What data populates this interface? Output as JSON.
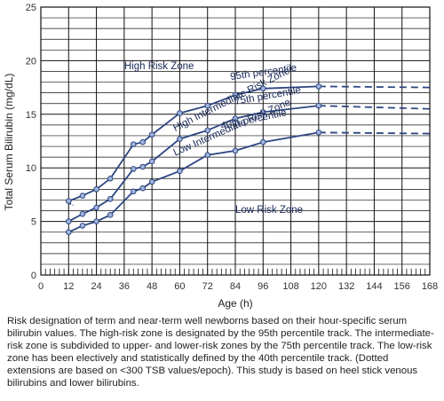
{
  "chart_data": {
    "type": "line",
    "xlabel": "Age (h)",
    "ylabel": "Total Serum Bilirubin (mg/dL)",
    "xlim": [
      0,
      168
    ],
    "ylim": [
      0,
      25
    ],
    "xticks": [
      0,
      12,
      24,
      36,
      48,
      60,
      72,
      84,
      96,
      108,
      120,
      132,
      144,
      156,
      168
    ],
    "yticks": [
      0,
      5,
      10,
      15,
      20,
      25
    ],
    "grid": true,
    "series": [
      {
        "name": "95th percentile",
        "x": [
          12,
          18,
          24,
          30,
          40,
          44,
          48,
          60,
          72,
          84,
          96,
          120
        ],
        "y": [
          6.9,
          7.4,
          8.0,
          9.0,
          12.2,
          12.4,
          13.1,
          15.1,
          15.8,
          16.8,
          17.4,
          17.6
        ],
        "dotted_x": [
          12,
          14
        ],
        "dotted_y": [
          6.7,
          6.5
        ],
        "extension_x": [
          120,
          168
        ],
        "extension_y": [
          17.6,
          17.5
        ]
      },
      {
        "name": "75th percentile",
        "x": [
          12,
          18,
          24,
          30,
          40,
          44,
          48,
          60,
          72,
          84,
          96,
          120
        ],
        "y": [
          5.0,
          5.7,
          6.3,
          7.1,
          9.9,
          10.1,
          10.6,
          12.7,
          13.5,
          14.6,
          15.2,
          15.8
        ],
        "dotted_x": [
          12,
          14
        ],
        "dotted_y": [
          5.0,
          5.0
        ],
        "extension_x": [
          120,
          168
        ],
        "extension_y": [
          15.8,
          15.5
        ]
      },
      {
        "name": "40th percentile",
        "x": [
          12,
          18,
          24,
          30,
          40,
          44,
          48,
          60,
          72,
          84,
          96,
          120
        ],
        "y": [
          4.0,
          4.6,
          5.0,
          5.6,
          7.8,
          8.1,
          8.7,
          9.7,
          11.2,
          11.6,
          12.4,
          13.3
        ],
        "dotted_x": [
          12,
          14
        ],
        "dotted_y": [
          3.8,
          4.0
        ],
        "extension_x": [
          120,
          168
        ],
        "extension_y": [
          13.3,
          13.2
        ]
      }
    ],
    "zone_labels": [
      {
        "text": "High Risk Zone",
        "x": 36,
        "y": 19.2,
        "rotate": 0
      },
      {
        "text": "High Intermediate Risk Zone",
        "x": 58,
        "y": 13.4,
        "rotate": -27
      },
      {
        "text": "Low Intermediate Risk Zone",
        "x": 58,
        "y": 11.1,
        "rotate": -24
      },
      {
        "text": "Low Risk Zone",
        "x": 84,
        "y": 5.8,
        "rotate": 0
      }
    ]
  },
  "caption": "Risk designation of term and near-term well newborns based on their hour-specific serum bilirubin values. The high-risk zone is designated by the 95th percentile track. The intermediate-risk zone is subdivided to upper- and lower-risk zones by the 75th percentile track. The low-risk zone has been electively and statistically defined by the 40th percentile track. (Dotted extensions are based on <300 TSB values/epoch). This study is based on heel stick venous bilirubins and lower bilirubins.",
  "colors": {
    "line": "#2d4580",
    "marker_fill": "#9fb4dc",
    "grid": "#111111",
    "axis": "#111111",
    "zone_text": "#1a2a5a"
  }
}
